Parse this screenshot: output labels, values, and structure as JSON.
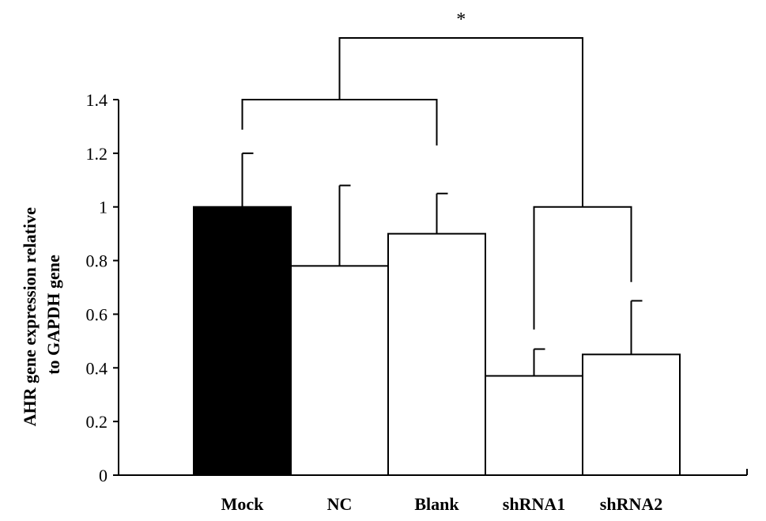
{
  "chart_data": {
    "type": "bar",
    "title": "",
    "xlabel": "",
    "ylabel_lines": [
      "AHR gene expression relative",
      "to GAPDH gene"
    ],
    "categories": [
      "Mock",
      "NC",
      "Blank",
      "shRNA1",
      "shRNA2"
    ],
    "values": [
      1.0,
      0.78,
      0.9,
      0.37,
      0.45
    ],
    "errors": [
      0.2,
      0.3,
      0.15,
      0.1,
      0.2
    ],
    "bar_fill": [
      "#000000",
      "#ffffff",
      "#ffffff",
      "#ffffff",
      "#ffffff"
    ],
    "ylim": [
      0,
      1.4
    ],
    "yticks": [
      {
        "value": 0,
        "label": "0"
      },
      {
        "value": 0.2,
        "label": "0.2"
      },
      {
        "value": 0.4,
        "label": "0.4"
      },
      {
        "value": 0.6,
        "label": "0.6"
      },
      {
        "value": 0.8,
        "label": "0.8"
      },
      {
        "value": 1.0,
        "label": "1"
      },
      {
        "value": 1.2,
        "label": "1.2"
      },
      {
        "value": 1.4,
        "label": "1.4"
      }
    ],
    "grid": false,
    "significance": {
      "label": "*",
      "group_a": {
        "from": 0,
        "to": 2,
        "y": 1.4
      },
      "group_b": {
        "from": 3,
        "to": 4,
        "y": 1.0
      },
      "top_y": 1.63
    }
  }
}
